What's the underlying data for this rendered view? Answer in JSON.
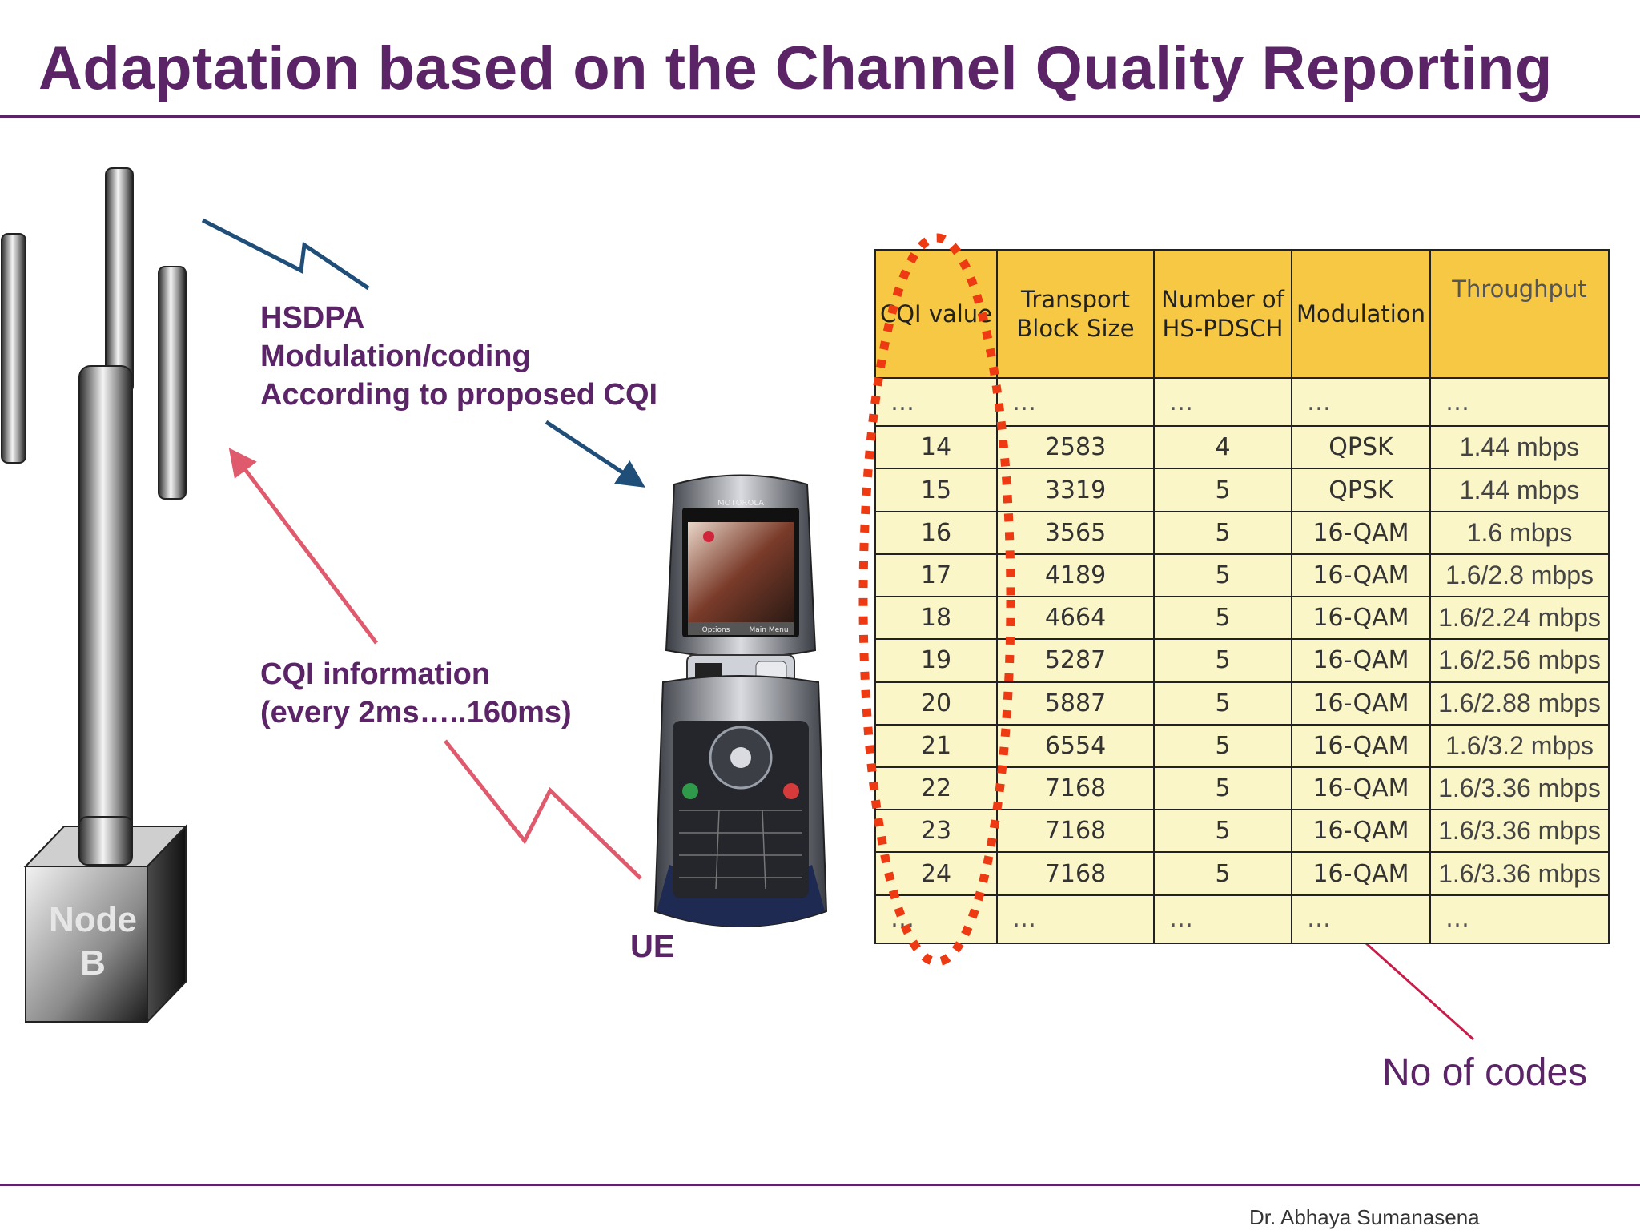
{
  "slide": {
    "title": "Adaptation based on the Channel Quality Reporting",
    "footer": "Dr. Abhaya Sumanasena"
  },
  "labels": {
    "hsdpa_lines": [
      "HSDPA",
      "Modulation/coding",
      "According to proposed CQI"
    ],
    "cqi_lines": [
      "CQI information",
      "(every 2ms…..160ms)"
    ],
    "node_lines": [
      "Node",
      "B"
    ],
    "ue": "UE",
    "codes_note": "No of codes"
  },
  "phone": {
    "brand": "MOTOROLA",
    "softkey_left": "Options",
    "softkey_right": "Main Menu"
  },
  "table": {
    "headers": [
      "CQI value",
      "Transport Block Size",
      "Number of HS-PDSCH",
      "Modulation",
      "Throughput"
    ],
    "ellipsis": "…",
    "rows": [
      {
        "cqi": "14",
        "tbs": "2583",
        "codes": "4",
        "mod": "QPSK",
        "tput": "1.44 mbps"
      },
      {
        "cqi": "15",
        "tbs": "3319",
        "codes": "5",
        "mod": "QPSK",
        "tput": "1.44 mbps"
      },
      {
        "cqi": "16",
        "tbs": "3565",
        "codes": "5",
        "mod": "16-QAM",
        "tput": "1.6 mbps"
      },
      {
        "cqi": "17",
        "tbs": "4189",
        "codes": "5",
        "mod": "16-QAM",
        "tput": "1.6/2.8 mbps"
      },
      {
        "cqi": "18",
        "tbs": "4664",
        "codes": "5",
        "mod": "16-QAM",
        "tput": "1.6/2.24 mbps"
      },
      {
        "cqi": "19",
        "tbs": "5287",
        "codes": "5",
        "mod": "16-QAM",
        "tput": "1.6/2.56 mbps"
      },
      {
        "cqi": "20",
        "tbs": "5887",
        "codes": "5",
        "mod": "16-QAM",
        "tput": "1.6/2.88 mbps"
      },
      {
        "cqi": "21",
        "tbs": "6554",
        "codes": "5",
        "mod": "16-QAM",
        "tput": "1.6/3.2 mbps"
      },
      {
        "cqi": "22",
        "tbs": "7168",
        "codes": "5",
        "mod": "16-QAM",
        "tput": "1.6/3.36 mbps"
      },
      {
        "cqi": "23",
        "tbs": "7168",
        "codes": "5",
        "mod": "16-QAM",
        "tput": "1.6/3.36 mbps"
      },
      {
        "cqi": "24",
        "tbs": "7168",
        "codes": "5",
        "mod": "16-QAM",
        "tput": "1.6/3.36 mbps"
      }
    ]
  },
  "colors": {
    "title": "#5b2467",
    "downlink_arrow": "#1f4e79",
    "uplink_arrow": "#e05a6e",
    "highlight_ellipse": "#ee3a12",
    "header_fill": "#f7c843",
    "cell_fill": "#fbf6c8"
  }
}
